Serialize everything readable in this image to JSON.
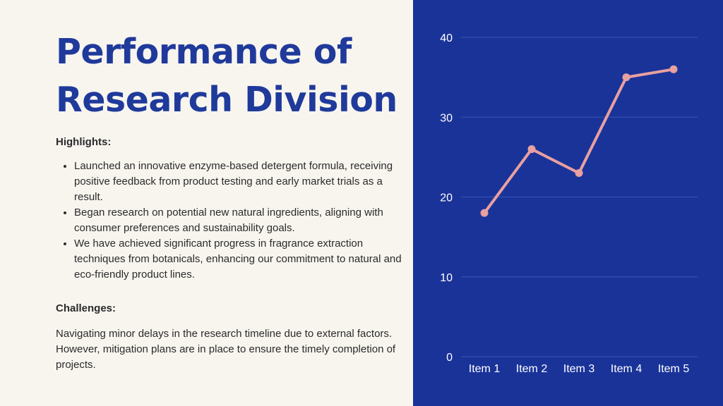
{
  "slide": {
    "title": "Performance of Research Division",
    "highlights_label": "Highlights:",
    "highlights": [
      "Launched an innovative enzyme-based detergent formula, receiving positive feedback from product testing and early market trials as a result.",
      "Began research on potential new natural ingredients, aligning with consumer preferences and sustainability goals.",
      "We have achieved significant progress in fragrance extraction techniques from botanicals, enhancing our commitment to natural and eco-friendly product lines."
    ],
    "challenges_label": "Challenges:",
    "challenges_text": "Navigating minor delays in the research timeline due to external factors. However, mitigation plans are in place to ensure the timely completion of projects."
  },
  "colors": {
    "title": "#1f3a9b",
    "panel": "#1a3399",
    "line": "#e8a0a0",
    "grid": "#3a55b0",
    "text": "#ffffff"
  },
  "chart_data": {
    "type": "line",
    "categories": [
      "Item 1",
      "Item 2",
      "Item 3",
      "Item 4",
      "Item 5"
    ],
    "values": [
      18,
      26,
      23,
      35,
      36
    ],
    "ylim": [
      0,
      40
    ],
    "yticks": [
      0,
      10,
      20,
      30,
      40
    ],
    "grid": true,
    "legend": "none"
  }
}
